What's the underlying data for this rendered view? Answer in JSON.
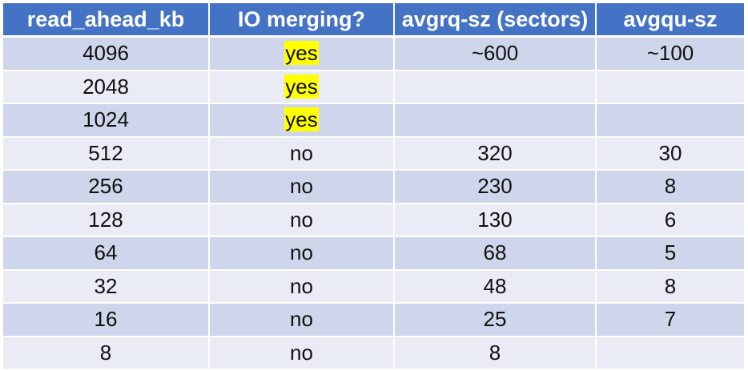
{
  "table": {
    "headers": [
      "read_ahead_kb",
      "IO merging?",
      "avgrq-sz (sectors)",
      "avgqu-sz"
    ],
    "rows": [
      {
        "read_ahead_kb": "4096",
        "io_merging": "yes",
        "avgrq_sz": "~600",
        "avgqu_sz": "~100"
      },
      {
        "read_ahead_kb": "2048",
        "io_merging": "yes",
        "avgrq_sz": "",
        "avgqu_sz": ""
      },
      {
        "read_ahead_kb": "1024",
        "io_merging": "yes",
        "avgrq_sz": "",
        "avgqu_sz": ""
      },
      {
        "read_ahead_kb": "512",
        "io_merging": "no",
        "avgrq_sz": "320",
        "avgqu_sz": "30"
      },
      {
        "read_ahead_kb": "256",
        "io_merging": "no",
        "avgrq_sz": "230",
        "avgqu_sz": "8"
      },
      {
        "read_ahead_kb": "128",
        "io_merging": "no",
        "avgrq_sz": "130",
        "avgqu_sz": "6"
      },
      {
        "read_ahead_kb": "64",
        "io_merging": "no",
        "avgrq_sz": "68",
        "avgqu_sz": "5"
      },
      {
        "read_ahead_kb": "32",
        "io_merging": "no",
        "avgrq_sz": "48",
        "avgqu_sz": "8"
      },
      {
        "read_ahead_kb": "16",
        "io_merging": "no",
        "avgrq_sz": "25",
        "avgqu_sz": "7"
      },
      {
        "read_ahead_kb": "8",
        "io_merging": "no",
        "avgrq_sz": "8",
        "avgqu_sz": ""
      }
    ]
  },
  "colors": {
    "header_bg": "#4472c4",
    "row_odd_bg": "#cfd5ea",
    "row_even_bg": "#e9ebf5",
    "highlight": "#ffff00"
  }
}
